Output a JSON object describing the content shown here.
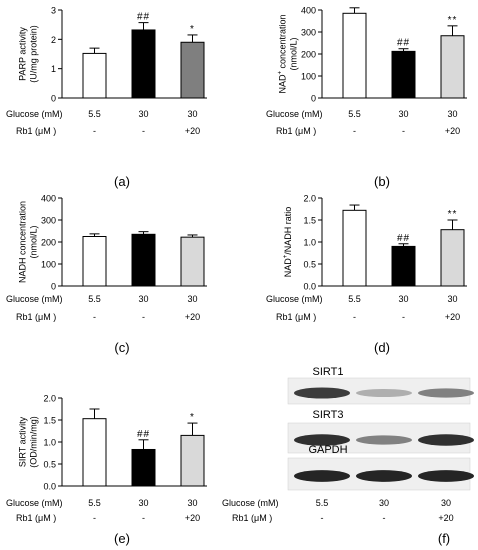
{
  "figure": {
    "chart_data": [
      {
        "type": "bar",
        "panel_label": "(a)",
        "ylabel": [
          "PARP activity",
          "(U/mg protein)"
        ],
        "ylabel_super": [],
        "yticks": [
          "0",
          "1",
          "2",
          "3"
        ],
        "ylim": [
          0,
          3
        ],
        "categories": [
          "5.5",
          "30",
          "30"
        ],
        "rb1": [
          "-",
          "-",
          "+20"
        ],
        "row_labels": [
          "Glucose (mM)",
          "Rb1 (μM )"
        ],
        "values": [
          1.52,
          2.32,
          1.9
        ],
        "errors": [
          0.18,
          0.25,
          0.25
        ],
        "annotations": [
          "",
          "##",
          "*"
        ],
        "bar_colors": [
          "#ffffff",
          "#000000",
          "#7f7f7f"
        ]
      },
      {
        "type": "bar",
        "panel_label": "(b)",
        "ylabel": [
          "NAD+ concentration",
          "(nmol/L)"
        ],
        "yticks": [
          "0",
          "100",
          "200",
          "300",
          "400"
        ],
        "ylim": [
          0,
          400
        ],
        "categories": [
          "5.5",
          "30",
          "30"
        ],
        "rb1": [
          "-",
          "-",
          "+20"
        ],
        "row_labels": [
          "Glucose (mM)",
          "Rb1 (μM )"
        ],
        "values": [
          385,
          212,
          283
        ],
        "errors": [
          25,
          12,
          45
        ],
        "annotations": [
          "",
          "##",
          "**"
        ],
        "bar_colors": [
          "#ffffff",
          "#000000",
          "#d9d9d9"
        ]
      },
      {
        "type": "bar",
        "panel_label": "(c)",
        "ylabel": [
          "NADH concentration",
          "(nmol/L)"
        ],
        "yticks": [
          "0",
          "100",
          "200",
          "300",
          "400"
        ],
        "ylim": [
          0,
          400
        ],
        "categories": [
          "5.5",
          "30",
          "30"
        ],
        "rb1": [
          "-",
          "-",
          "+20"
        ],
        "row_labels": [
          "Glucose (mM)",
          "Rb1 (μM )"
        ],
        "values": [
          225,
          235,
          222
        ],
        "errors": [
          12,
          12,
          10
        ],
        "annotations": [
          "",
          "",
          ""
        ],
        "bar_colors": [
          "#ffffff",
          "#000000",
          "#d9d9d9"
        ]
      },
      {
        "type": "bar",
        "panel_label": "(d)",
        "ylabel": [
          "NAD+/NADH ratio"
        ],
        "yticks": [
          "0.0",
          "0.5",
          "1.0",
          "1.5",
          "2.0"
        ],
        "ylim": [
          0,
          2
        ],
        "categories": [
          "5.5",
          "30",
          "30"
        ],
        "rb1": [
          "-",
          "-",
          "+20"
        ],
        "row_labels": [
          "Glucose (mM)",
          "Rb1 (μM )"
        ],
        "values": [
          1.72,
          0.9,
          1.28
        ],
        "errors": [
          0.12,
          0.06,
          0.22
        ],
        "annotations": [
          "",
          "##",
          "**"
        ],
        "bar_colors": [
          "#ffffff",
          "#000000",
          "#d9d9d9"
        ]
      },
      {
        "type": "bar",
        "panel_label": "(e)",
        "ylabel": [
          "SIRT activity",
          "(OD/min/mg)"
        ],
        "yticks": [
          "0.0",
          "0.5",
          "1.0",
          "1.5",
          "2.0"
        ],
        "ylim": [
          0,
          2
        ],
        "categories": [
          "5.5",
          "30",
          "30"
        ],
        "rb1": [
          "-",
          "-",
          "+20"
        ],
        "row_labels": [
          "Glucose (mM)",
          "Rb1 (μM )"
        ],
        "values": [
          1.53,
          0.83,
          1.15
        ],
        "errors": [
          0.22,
          0.22,
          0.28
        ],
        "annotations": [
          "",
          "##",
          "*"
        ],
        "bar_colors": [
          "#ffffff",
          "#000000",
          "#d9d9d9"
        ]
      }
    ],
    "blot": {
      "panel_label": "(f)",
      "bands": [
        {
          "label": "SIRT1",
          "intensity": [
            0.85,
            0.35,
            0.55
          ]
        },
        {
          "label": "SIRT3",
          "intensity": [
            0.9,
            0.55,
            0.9
          ]
        },
        {
          "label": "GAPDH",
          "intensity": [
            0.95,
            0.95,
            0.95
          ]
        }
      ],
      "categories": [
        "5.5",
        "30",
        "30"
      ],
      "rb1": [
        "-",
        "-",
        "+20"
      ],
      "row_labels": [
        "Glucose (mM)",
        "Rb1 (μM )"
      ]
    }
  }
}
